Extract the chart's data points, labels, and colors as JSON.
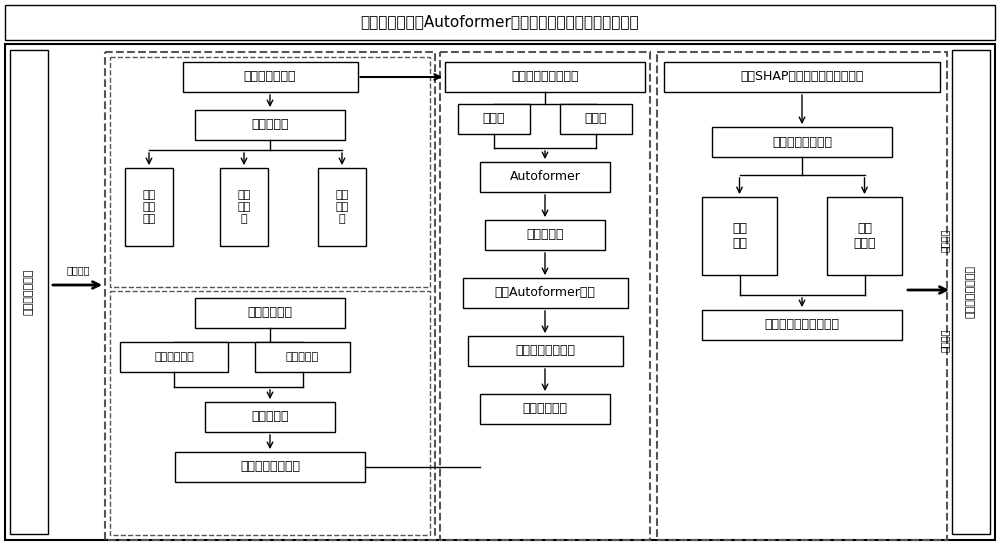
{
  "title": "基于贝叶斯优化Autoformer的盾构刀盘扭矩的多步预测系统",
  "bg_color": "#ffffff",
  "left_sidebar_text": "掘进系统数据库",
  "left_arrow_text": "调取数据",
  "right_sidebar_text": "掘进系统物理实体",
  "right_top_text": "知识反馈",
  "right_bottom_text": "操作指导",
  "panel1_title": "盾构参数数据集",
  "panel2_title": "刀盘扭矩预测数据集",
  "panel3_title": "基于SHAP的施工参数可解释分析",
  "node_p1_1": "数据预处理",
  "node_p1_sub1a": "停机\n数据\n过滤",
  "node_p1_sub1b": "异常\n值处\n理",
  "node_p1_sub1c": "缺失\n值处\n理",
  "node_p1_2": "冗余参数过滤",
  "node_p1_sub2a": "常量参数过滤",
  "node_p1_sub2b": "相关性分析",
  "node_p1_3": "数据归一化",
  "node_p1_4": "时间序列数据重构",
  "node_p2_1": "训练集",
  "node_p2_2": "测试集",
  "node_p2_3": "Autoformer",
  "node_p2_4": "贝叶斯优化",
  "node_p2_5": "最优Autoformer模型",
  "node_p2_6": "刀盘扭矩多步预测",
  "node_p2_7": "预测结果评估",
  "node_p3_1": "施工参数解释模型",
  "node_p3_2a": "总体\n影响",
  "node_p3_2b": "平均\n贡献度",
  "node_p3_3": "关键时间步与施工参数"
}
